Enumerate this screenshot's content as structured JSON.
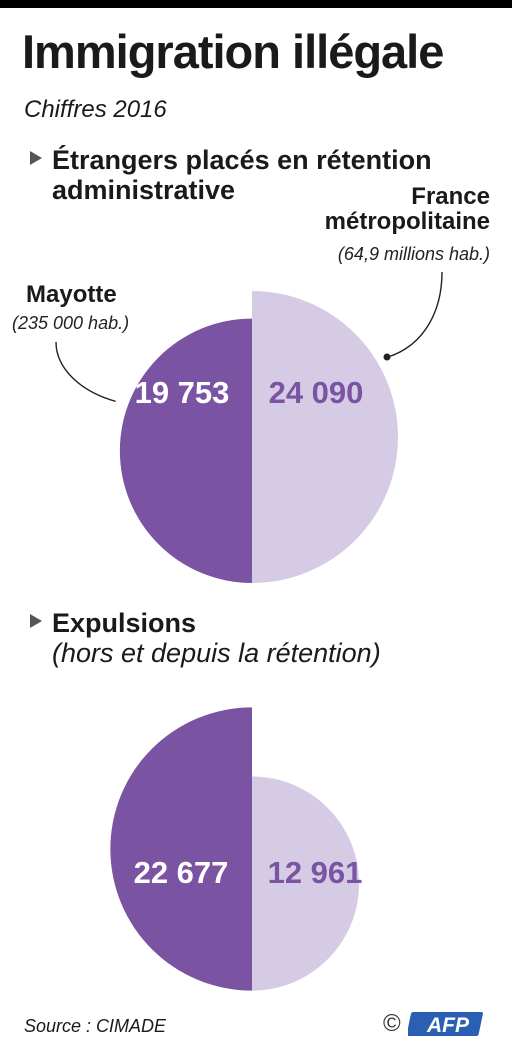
{
  "title": "Immigration illégale",
  "subtitle": "Chiffres 2016",
  "colors": {
    "mayotte": "#7b53a3",
    "france": "#d6cbe4",
    "label_light": "#ffffff",
    "label_dark": "#7b53a3"
  },
  "chart_data": [
    {
      "type": "pie",
      "title": "Étrangers placés en rétention administrative",
      "slices": [
        {
          "label": "Mayotte",
          "note": "(235 000 hab.)",
          "value": 19753,
          "display": "19 753"
        },
        {
          "label": "France métropolitaine",
          "note": "(64,9 millions hab.)",
          "value": 24090,
          "display": "24 090"
        }
      ]
    },
    {
      "type": "pie",
      "title": "Expulsions",
      "subtitle": "(hors et depuis la rétention)",
      "slices": [
        {
          "label": "Mayotte",
          "value": 22677,
          "display": "22 677"
        },
        {
          "label": "France métropolitaine",
          "value": 12961,
          "display": "12 961"
        }
      ]
    }
  ],
  "labels": {
    "mayotte": "Mayotte",
    "mayotte_pop": "(235 000 hab.)",
    "france_line1": "France",
    "france_line2": "métropolitaine",
    "france_pop": "(64,9 millions hab.)"
  },
  "source": "Source : CIMADE",
  "credit": {
    "copyright": "©",
    "logo_text": "AFP",
    "logo_icon": "afp-logo-icon"
  }
}
